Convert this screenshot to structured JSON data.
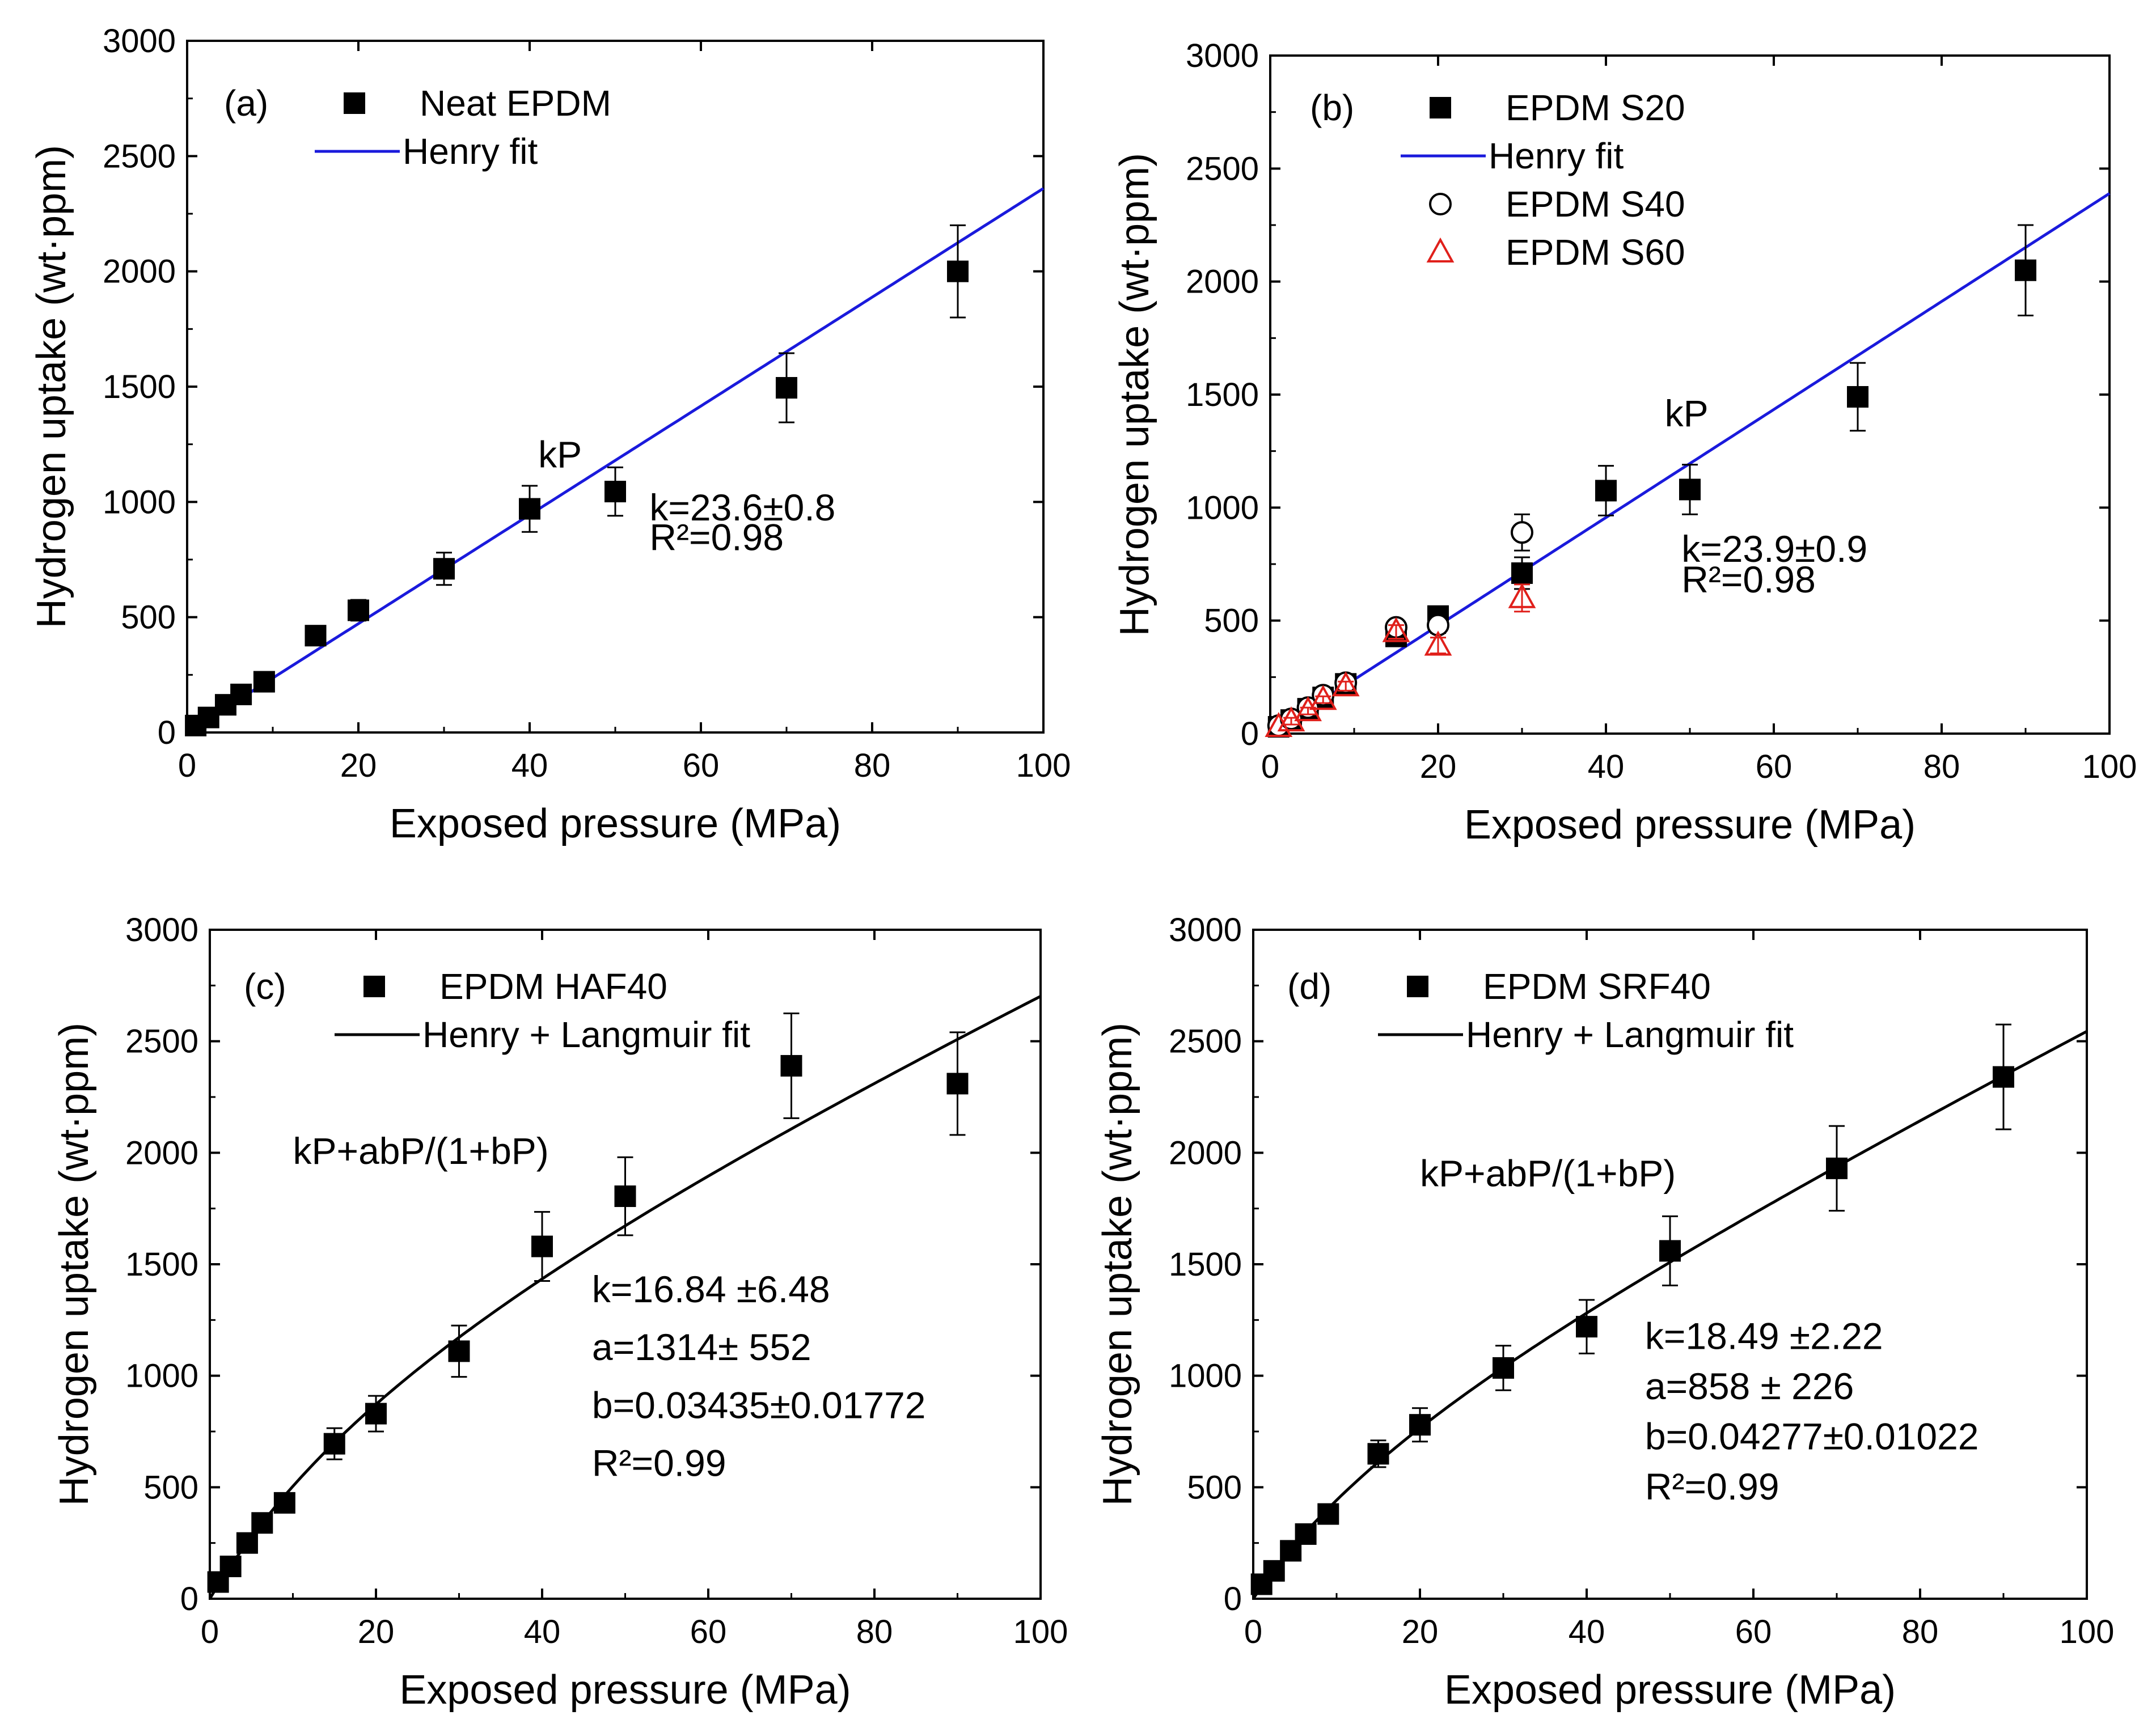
{
  "colors": {
    "henry_line": "#1a1adc",
    "hl_line": "#000000",
    "marker": "#000000",
    "s60": "#e0201b"
  },
  "chart_data": [
    {
      "id": "a",
      "type": "scatter",
      "panel_label": "(a)",
      "xlabel": "Exposed pressure (MPa)",
      "ylabel": "Hydrogen uptake (wt·ppm)",
      "xlim": [
        0,
        100
      ],
      "ylim": [
        0,
        3000
      ],
      "xticks": [
        0,
        20,
        40,
        60,
        80,
        100
      ],
      "yticks": [
        0,
        500,
        1000,
        1500,
        2000,
        2500,
        3000
      ],
      "series": [
        {
          "name": "Neat EPDM",
          "marker": "square",
          "x": [
            1,
            2.5,
            4.5,
            6.3,
            9,
            15,
            20,
            30,
            40,
            50,
            70,
            90
          ],
          "y": [
            30,
            65,
            120,
            165,
            220,
            420,
            530,
            710,
            970,
            1045,
            1495,
            2000
          ],
          "err": [
            0,
            15,
            15,
            15,
            20,
            25,
            45,
            70,
            100,
            105,
            150,
            200
          ]
        }
      ],
      "fit": {
        "name": "Henry fit",
        "model": "henry",
        "k": 23.6,
        "color": "#1a1adc"
      },
      "formula": "kP",
      "annotation_lines": [
        "k=23.6±0.8",
        "R²=0.98"
      ]
    },
    {
      "id": "b",
      "type": "scatter",
      "panel_label": "(b)",
      "xlabel": "Exposed pressure (MPa)",
      "ylabel": "Hydrogen uptake (wt·ppm)",
      "xlim": [
        0,
        100
      ],
      "ylim": [
        0,
        3000
      ],
      "xticks": [
        0,
        20,
        40,
        60,
        80,
        100
      ],
      "yticks": [
        0,
        500,
        1000,
        1500,
        2000,
        2500,
        3000
      ],
      "series": [
        {
          "name": "EPDM S20",
          "marker": "square",
          "x": [
            1,
            2.5,
            4.5,
            6.3,
            9,
            15,
            20,
            30,
            40,
            50,
            70,
            90
          ],
          "y": [
            30,
            60,
            110,
            160,
            220,
            430,
            520,
            710,
            1075,
            1080,
            1490,
            2050
          ],
          "err": [
            0,
            15,
            15,
            15,
            20,
            30,
            40,
            70,
            110,
            110,
            150,
            200
          ]
        },
        {
          "name": "EPDM S40",
          "marker": "circle",
          "x": [
            1,
            2.5,
            4.5,
            6.3,
            9,
            15,
            20,
            30
          ],
          "y": [
            35,
            65,
            115,
            170,
            225,
            470,
            480,
            890
          ],
          "err": [
            0,
            15,
            15,
            15,
            20,
            30,
            35,
            80
          ]
        },
        {
          "name": "EPDM S60",
          "marker": "triangle",
          "x": [
            1,
            2.5,
            4.5,
            6.3,
            9,
            15,
            20,
            30
          ],
          "y": [
            30,
            55,
            100,
            150,
            210,
            450,
            390,
            600
          ],
          "err": [
            0,
            15,
            15,
            15,
            20,
            30,
            35,
            60
          ]
        }
      ],
      "fit": {
        "name": "Henry fit",
        "model": "henry",
        "k": 23.9,
        "color": "#1a1adc"
      },
      "formula": "kP",
      "annotation_lines": [
        "k=23.9±0.9",
        "R²=0.98"
      ]
    },
    {
      "id": "c",
      "type": "scatter",
      "panel_label": "(c)",
      "xlabel": "Exposed pressure (MPa)",
      "ylabel": "Hydrogen uptake (wt·ppm)",
      "xlim": [
        0,
        100
      ],
      "ylim": [
        0,
        3000
      ],
      "xticks": [
        0,
        20,
        40,
        60,
        80,
        100
      ],
      "yticks": [
        0,
        500,
        1000,
        1500,
        2000,
        2500,
        3000
      ],
      "series": [
        {
          "name": "EPDM HAF40",
          "marker": "square",
          "x": [
            1,
            2.5,
            4.5,
            6.3,
            9,
            15,
            20,
            30,
            40,
            50,
            70,
            90
          ],
          "y": [
            75,
            145,
            250,
            340,
            430,
            695,
            830,
            1110,
            1580,
            1805,
            2390,
            2310
          ],
          "err": [
            0,
            20,
            25,
            25,
            30,
            70,
            80,
            115,
            155,
            175,
            235,
            230
          ]
        }
      ],
      "fit": {
        "name": "Henry + Langmuir fit",
        "model": "henry_langmuir",
        "k": 16.84,
        "a": 1314,
        "b": 0.03435,
        "color": "#000000"
      },
      "formula": "kP+abP/(1+bP)",
      "annotation_lines": [
        "k=16.84 ±6.48",
        "a=1314± 552",
        "b=0.03435±0.01772",
        "R²=0.99"
      ]
    },
    {
      "id": "d",
      "type": "scatter",
      "panel_label": "(d)",
      "xlabel": "Exposed pressure (MPa)",
      "ylabel": "Hydrogen uptake (wt·ppm)",
      "xlim": [
        0,
        100
      ],
      "ylim": [
        0,
        3000
      ],
      "xticks": [
        0,
        20,
        40,
        60,
        80,
        100
      ],
      "yticks": [
        0,
        500,
        1000,
        1500,
        2000,
        2500,
        3000
      ],
      "series": [
        {
          "name": "EPDM SRF40",
          "marker": "square",
          "x": [
            1,
            2.5,
            4.5,
            6.3,
            9,
            15,
            20,
            30,
            40,
            50,
            70,
            90
          ],
          "y": [
            65,
            125,
            215,
            290,
            380,
            650,
            780,
            1035,
            1220,
            1560,
            1930,
            2340
          ],
          "err": [
            0,
            20,
            20,
            25,
            30,
            60,
            75,
            100,
            120,
            155,
            190,
            235
          ]
        }
      ],
      "fit": {
        "name": "Henry + Langmuir fit",
        "model": "henry_langmuir",
        "k": 18.49,
        "a": 858,
        "b": 0.04277,
        "color": "#000000"
      },
      "formula": "kP+abP/(1+bP)",
      "annotation_lines": [
        "k=18.49 ±2.22",
        "a=858 ± 226",
        "b=0.04277±0.01022",
        "R²=0.99"
      ]
    }
  ]
}
